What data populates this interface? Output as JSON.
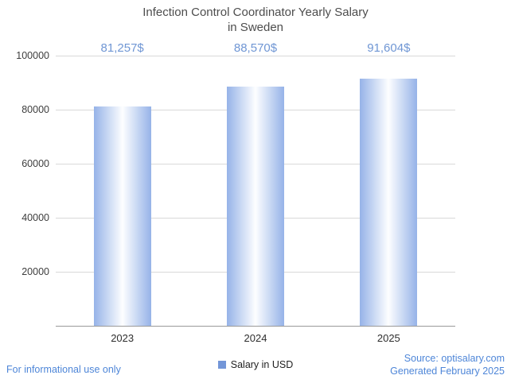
{
  "title": "Infection Control Coordinator Yearly Salary\nin Sweden",
  "chart_data": {
    "type": "bar",
    "title": "Infection Control Coordinator Yearly Salary in Sweden",
    "categories": [
      "2023",
      "2024",
      "2025"
    ],
    "values": [
      81257,
      88570,
      91604
    ],
    "value_labels": [
      "81,257$",
      "88,570$",
      "91,604$"
    ],
    "xlabel": "",
    "ylabel": "",
    "ylim": [
      0,
      100000
    ],
    "yticks": [
      20000,
      40000,
      60000,
      80000,
      100000
    ],
    "grid": true,
    "legend_position": "bottom",
    "legend_entries": [
      "Salary in USD"
    ],
    "bar_gradient": [
      "#96b3e8",
      "#fdfeff",
      "#96b3e8"
    ]
  },
  "legend": {
    "label": "Salary in USD"
  },
  "footer": {
    "disclaimer": "For informational use only",
    "source": "Source: optisalary.com",
    "generated": "Generated February 2025"
  },
  "colors": {
    "value_label_blue": "#6f96d4",
    "footer_blue": "#4e86d8",
    "title_gray": "#4d4d4d",
    "grid_gray": "#d9d9d9",
    "axis_gray": "#9a9a9a",
    "legend_swatch_blue": "#7396d8",
    "bar_edge_blue": "#96b3e8"
  }
}
